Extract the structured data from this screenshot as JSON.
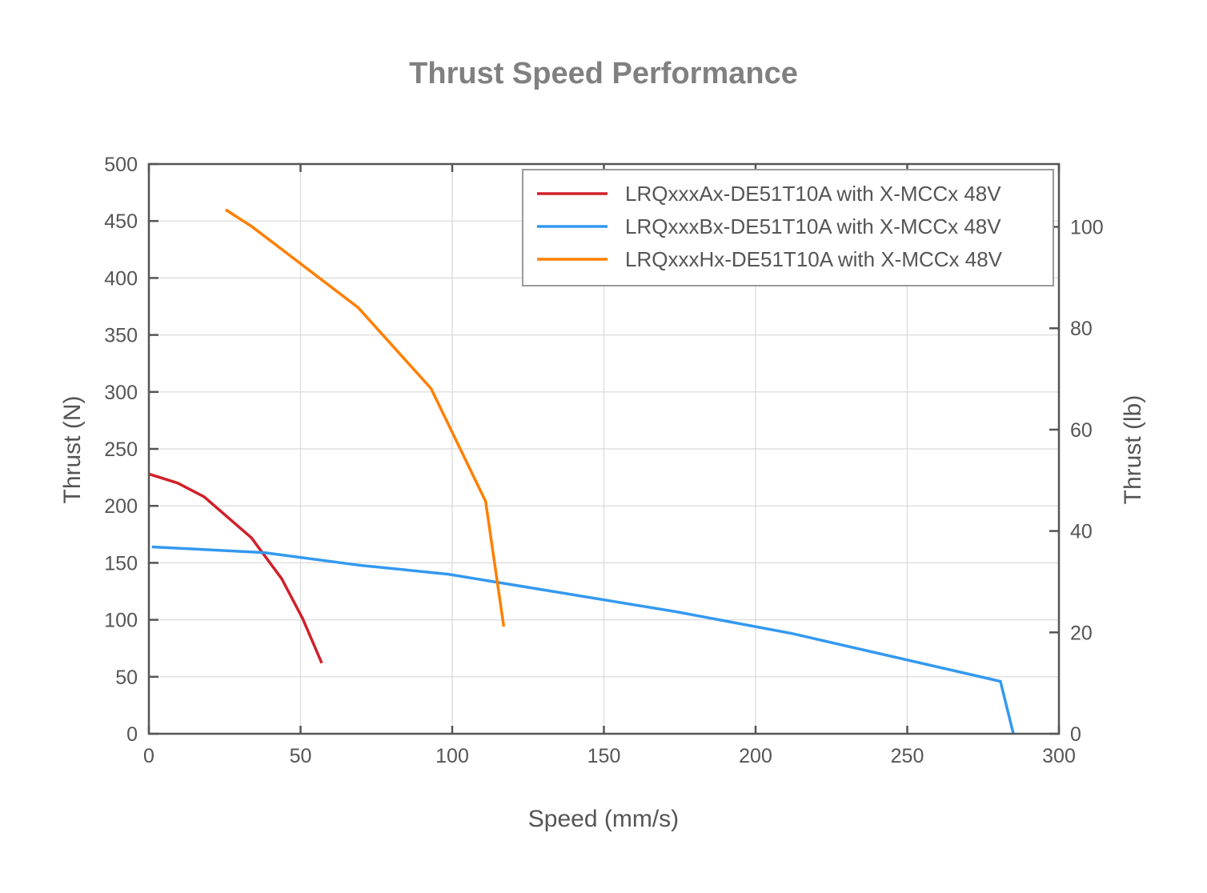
{
  "chart_data": {
    "type": "line",
    "title": "Thrust Speed Performance",
    "xlabel": "Speed (mm/s)",
    "ylabel": "Thrust (N)",
    "y2label": "Thrust (lb)",
    "xlim": [
      0,
      300
    ],
    "ylim": [
      0,
      500
    ],
    "y2lim": [
      0,
      112.4
    ],
    "xticks": [
      0,
      50,
      100,
      150,
      200,
      250,
      300
    ],
    "yticks": [
      0,
      50,
      100,
      150,
      200,
      250,
      300,
      350,
      400,
      450,
      500
    ],
    "y2ticks": [
      0,
      20,
      40,
      60,
      80,
      100
    ],
    "grid": true,
    "legend_position": "upper right",
    "series": [
      {
        "name": "LRQxxxAx-DE51T10A with X-MCCx 48V",
        "color": "#d0202a",
        "x": [
          0,
          9.5,
          18.2,
          33.8,
          43.8,
          50.7,
          57
        ],
        "y": [
          228,
          220,
          208,
          172,
          136,
          101,
          62
        ]
      },
      {
        "name": "LRQxxxBx-DE51T10A with X-MCCx 48V",
        "color": "#3399f0",
        "x": [
          1,
          38,
          69,
          98.7,
          174,
          212,
          280.7,
          285
        ],
        "y": [
          164,
          159,
          148,
          140,
          107,
          88,
          46,
          0
        ]
      },
      {
        "name": "LRQxxxHx-DE51T10A with X-MCCx 48V",
        "color": "#ff7f00",
        "x": [
          25.3,
          34,
          69,
          93,
          111,
          117
        ],
        "y": [
          460,
          445,
          374,
          303,
          204,
          94
        ]
      }
    ]
  },
  "labels": {
    "title": "Thrust Speed Performance",
    "xlabel": "Speed (mm/s)",
    "ylabel": "Thrust (N)",
    "y2label": "Thrust (lb)"
  }
}
